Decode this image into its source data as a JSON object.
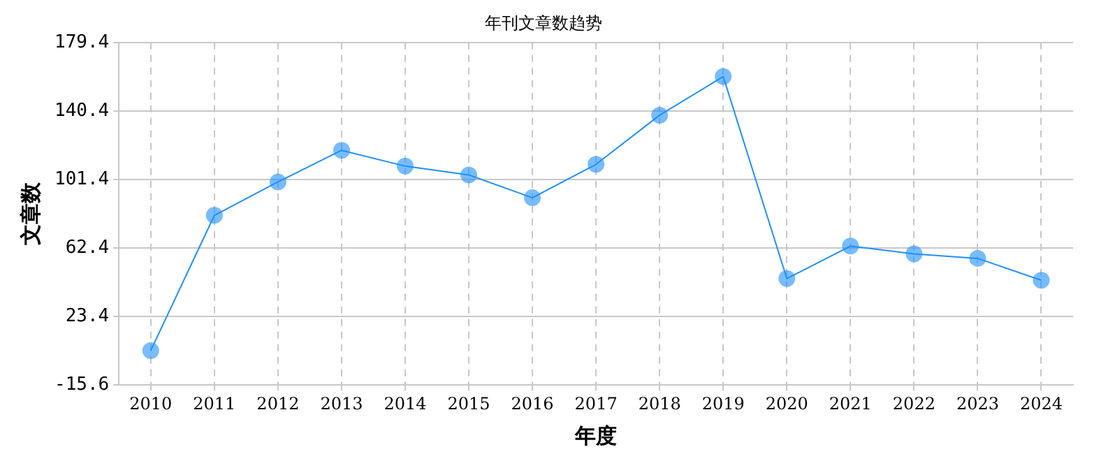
{
  "chart_data": {
    "type": "line",
    "title": "年刊文章数趋势",
    "xlabel": "年度",
    "ylabel": "文章数",
    "categories": [
      "2010",
      "2011",
      "2012",
      "2013",
      "2014",
      "2015",
      "2016",
      "2017",
      "2018",
      "2019",
      "2020",
      "2021",
      "2022",
      "2023",
      "2024"
    ],
    "series": [
      {
        "color": "#1e90ff",
        "values": [
          4,
          81,
          100,
          118,
          109,
          104,
          91,
          110,
          138,
          160,
          45,
          63.5,
          59,
          56.5,
          44
        ]
      }
    ],
    "ylim": [
      -15.6,
      179.4
    ],
    "yticks": [
      -15.6,
      23.4,
      62.4,
      101.4,
      140.4,
      179.4
    ],
    "grid": true,
    "legend": false,
    "marker": "circle",
    "line_style": "solid"
  }
}
